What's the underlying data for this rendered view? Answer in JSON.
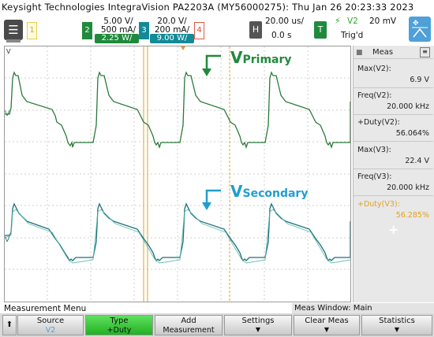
{
  "title": "Keysight Technologies IntegraVision PA2203A (MY56000275): Thu Jan 26 20:23:33 2023",
  "channels": [
    {
      "num": "1",
      "color": "#e3d14a"
    },
    {
      "num": "2",
      "scale": "5.00 V/",
      "scale2": "500 mA/",
      "power": "2.25 W/",
      "color": "#1f8a3c"
    },
    {
      "num": "3",
      "scale": "20.0 V/",
      "scale2": "200 mA/",
      "power": "9.00 W/",
      "color": "#138a96"
    },
    {
      "num": "4",
      "color": "#e05a43"
    }
  ],
  "horizontal": {
    "button": "H",
    "time_div": "20.00 us/",
    "delay": "0.0 s"
  },
  "trigger": {
    "button": "T",
    "source": "V2",
    "level": "20 mV",
    "status": "Trig'd"
  },
  "screen_labels": {
    "primary_v": "V",
    "primary_sub": "Primary",
    "secondary_v": "V",
    "secondary_sub": "Secondary",
    "marker_top": "V"
  },
  "meas": {
    "title": "Meas",
    "items": [
      {
        "label": "Max(V2):",
        "value": "6.9 V"
      },
      {
        "label": "Freq(V2):",
        "value": "20.000 kHz"
      },
      {
        "label": "+Duty(V2):",
        "value": "56.064%"
      },
      {
        "label": "Max(V3):",
        "value": "22.4 V"
      },
      {
        "label": "Freq(V3):",
        "value": "20.000 kHz"
      },
      {
        "label": "+Duty(V3):",
        "value": "56.285%"
      }
    ],
    "add": "+"
  },
  "menu_label": "Measurement Menu",
  "meas_window": "Meas Window: Main",
  "softkeys": [
    {
      "label": "Source",
      "sub": "V2"
    },
    {
      "label": "Type",
      "sub": "+Duty"
    },
    {
      "label": "Add",
      "sub": "Measurement"
    },
    {
      "label": "Settings",
      "sub": ""
    },
    {
      "label": "Clear Meas",
      "sub": ""
    },
    {
      "label": "Statistics",
      "sub": ""
    }
  ]
}
